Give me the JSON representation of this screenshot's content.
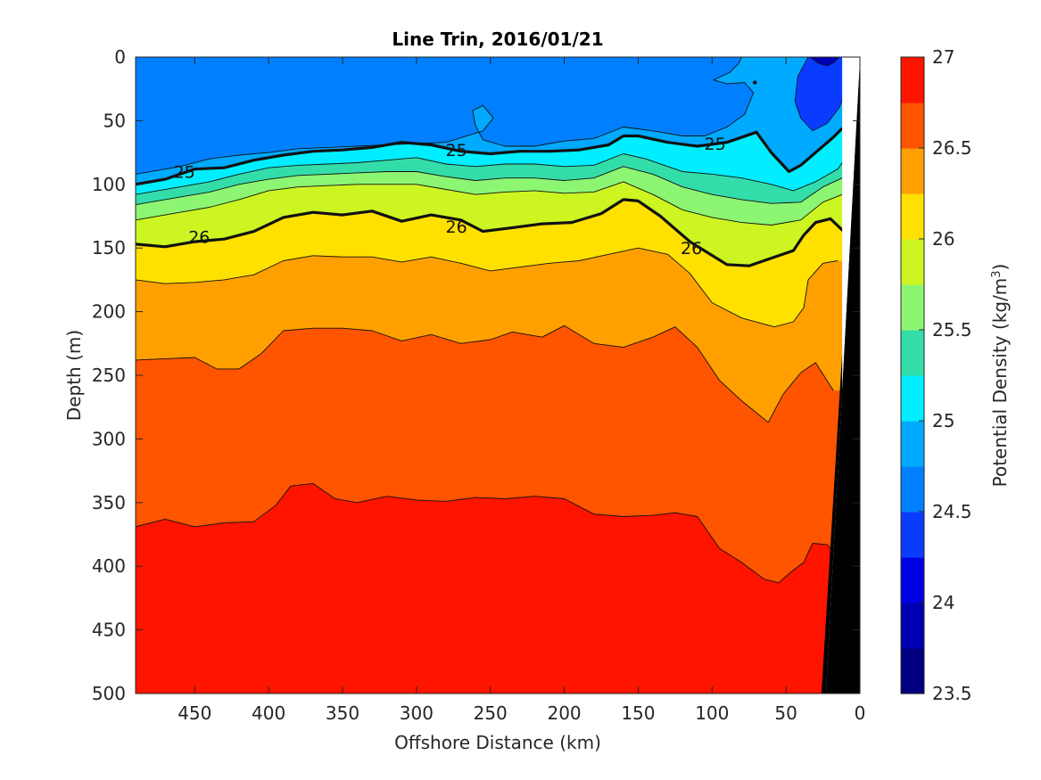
{
  "chart_data": {
    "type": "contour",
    "title": "Line Trin, 2016/01/21",
    "xlabel": "Offshore Distance (km)",
    "ylabel": "Depth (m)",
    "colorbar_label": "Potential Density (kg/m",
    "colorbar_label_superscript": "3",
    "colorbar_label_suffix": ")",
    "xlim": [
      490,
      0
    ],
    "ylim": [
      0,
      500
    ],
    "x_reversed": true,
    "y_reversed": true,
    "xticks": [
      450,
      400,
      350,
      300,
      250,
      200,
      150,
      100,
      50,
      0
    ],
    "yticks": [
      0,
      50,
      100,
      150,
      200,
      250,
      300,
      350,
      400,
      450,
      500
    ],
    "colorbar_range": [
      23.5,
      27
    ],
    "colorbar_ticks": [
      23.5,
      24,
      24.5,
      25,
      25.5,
      26,
      26.5,
      27
    ],
    "contour_interval": 0.25,
    "levels": [
      23.5,
      23.75,
      24,
      24.25,
      24.5,
      24.75,
      25,
      25.25,
      25.5,
      25.75,
      26,
      26.25,
      26.5,
      26.75,
      27
    ],
    "level_colors": [
      "#000080",
      "#0000B3",
      "#0000E6",
      "#0A3CFF",
      "#0080FF",
      "#00AAFF",
      "#00EEFF",
      "#33DDAA",
      "#8CF572",
      "#CCF522",
      "#FFE100",
      "#FFA000",
      "#FF5400",
      "#FF1400",
      "#BB0000"
    ],
    "labeled_contours": [
      {
        "value": 25,
        "labels": [
          {
            "x": 457,
            "y": 90
          },
          {
            "x": 273,
            "y": 73
          },
          {
            "x": 98,
            "y": 68
          }
        ]
      },
      {
        "value": 26,
        "labels": [
          {
            "x": 447,
            "y": 141
          },
          {
            "x": 273,
            "y": 133
          },
          {
            "x": 114,
            "y": 150
          }
        ]
      }
    ],
    "bathymetry_color": "#000000",
    "isopycnals": [
      {
        "value": 24.75,
        "points": [
          [
            490,
            92
          ],
          [
            460,
            86
          ],
          [
            440,
            80
          ],
          [
            420,
            77
          ],
          [
            400,
            75
          ],
          [
            380,
            72
          ],
          [
            360,
            71
          ],
          [
            340,
            70
          ],
          [
            320,
            69
          ],
          [
            300,
            68
          ],
          [
            280,
            67
          ],
          [
            255,
            58
          ],
          [
            248,
            48
          ],
          [
            255,
            38
          ],
          [
            262,
            42
          ],
          [
            260,
            54
          ],
          [
            255,
            65
          ],
          [
            240,
            70
          ],
          [
            220,
            70
          ],
          [
            200,
            66
          ],
          [
            180,
            64
          ],
          [
            160,
            55
          ],
          [
            140,
            58
          ],
          [
            120,
            62
          ],
          [
            105,
            62
          ],
          [
            90,
            55
          ],
          [
            78,
            45
          ],
          [
            72,
            28
          ],
          [
            78,
            20
          ],
          [
            90,
            21
          ],
          [
            99,
            18
          ],
          [
            88,
            12
          ],
          [
            82,
            5
          ],
          [
            80,
            0
          ]
        ]
      },
      {
        "value": 25,
        "points": [
          [
            490,
            100
          ],
          [
            470,
            96
          ],
          [
            450,
            88
          ],
          [
            430,
            87
          ],
          [
            410,
            81
          ],
          [
            390,
            77
          ],
          [
            370,
            74
          ],
          [
            350,
            73
          ],
          [
            330,
            71
          ],
          [
            310,
            67
          ],
          [
            290,
            69
          ],
          [
            270,
            74
          ],
          [
            250,
            76
          ],
          [
            230,
            74
          ],
          [
            210,
            74
          ],
          [
            190,
            73
          ],
          [
            170,
            69
          ],
          [
            160,
            62
          ],
          [
            150,
            62
          ],
          [
            130,
            67
          ],
          [
            110,
            70
          ],
          [
            90,
            67
          ],
          [
            70,
            59
          ],
          [
            60,
            75
          ],
          [
            48,
            90
          ],
          [
            40,
            85
          ],
          [
            30,
            75
          ],
          [
            18,
            63
          ],
          [
            12,
            56
          ]
        ]
      },
      {
        "value": 25.25,
        "points": [
          [
            490,
            108
          ],
          [
            460,
            102
          ],
          [
            440,
            98
          ],
          [
            420,
            92
          ],
          [
            400,
            87
          ],
          [
            380,
            85
          ],
          [
            360,
            84
          ],
          [
            340,
            83
          ],
          [
            320,
            81
          ],
          [
            300,
            79
          ],
          [
            280,
            84
          ],
          [
            260,
            86
          ],
          [
            240,
            84
          ],
          [
            220,
            84
          ],
          [
            200,
            86
          ],
          [
            180,
            85
          ],
          [
            160,
            76
          ],
          [
            145,
            80
          ],
          [
            120,
            90
          ],
          [
            100,
            92
          ],
          [
            80,
            95
          ],
          [
            60,
            100
          ],
          [
            45,
            105
          ],
          [
            30,
            98
          ],
          [
            15,
            88
          ],
          [
            10,
            80
          ]
        ]
      },
      {
        "value": 25.5,
        "points": [
          [
            490,
            116
          ],
          [
            460,
            110
          ],
          [
            440,
            106
          ],
          [
            420,
            100
          ],
          [
            400,
            96
          ],
          [
            380,
            93
          ],
          [
            360,
            92
          ],
          [
            340,
            91
          ],
          [
            320,
            90
          ],
          [
            300,
            90
          ],
          [
            280,
            94
          ],
          [
            260,
            97
          ],
          [
            240,
            95
          ],
          [
            220,
            95
          ],
          [
            200,
            97
          ],
          [
            180,
            95
          ],
          [
            160,
            86
          ],
          [
            140,
            92
          ],
          [
            120,
            102
          ],
          [
            100,
            108
          ],
          [
            80,
            112
          ],
          [
            60,
            115
          ],
          [
            40,
            114
          ],
          [
            25,
            102
          ],
          [
            10,
            94
          ]
        ]
      },
      {
        "value": 25.75,
        "points": [
          [
            490,
            128
          ],
          [
            460,
            122
          ],
          [
            440,
            118
          ],
          [
            420,
            112
          ],
          [
            400,
            105
          ],
          [
            380,
            102
          ],
          [
            360,
            101
          ],
          [
            340,
            100
          ],
          [
            320,
            100
          ],
          [
            300,
            100
          ],
          [
            280,
            104
          ],
          [
            260,
            108
          ],
          [
            240,
            106
          ],
          [
            220,
            105
          ],
          [
            200,
            107
          ],
          [
            180,
            106
          ],
          [
            160,
            98
          ],
          [
            140,
            108
          ],
          [
            120,
            120
          ],
          [
            100,
            126
          ],
          [
            80,
            130
          ],
          [
            60,
            132
          ],
          [
            40,
            128
          ],
          [
            25,
            114
          ],
          [
            12,
            108
          ]
        ]
      },
      {
        "value": 26,
        "points": [
          [
            490,
            147
          ],
          [
            470,
            149
          ],
          [
            450,
            145
          ],
          [
            430,
            143
          ],
          [
            410,
            137
          ],
          [
            390,
            126
          ],
          [
            370,
            122
          ],
          [
            350,
            124
          ],
          [
            330,
            121
          ],
          [
            310,
            129
          ],
          [
            290,
            124
          ],
          [
            270,
            128
          ],
          [
            255,
            137
          ],
          [
            235,
            134
          ],
          [
            215,
            131
          ],
          [
            195,
            130
          ],
          [
            175,
            123
          ],
          [
            160,
            112
          ],
          [
            150,
            113
          ],
          [
            135,
            125
          ],
          [
            115,
            145
          ],
          [
            90,
            163
          ],
          [
            75,
            164
          ],
          [
            60,
            158
          ],
          [
            45,
            152
          ],
          [
            38,
            140
          ],
          [
            30,
            130
          ],
          [
            20,
            127
          ],
          [
            10,
            138
          ]
        ]
      },
      {
        "value": 26.25,
        "points": [
          [
            490,
            175
          ],
          [
            470,
            178
          ],
          [
            450,
            177
          ],
          [
            430,
            175
          ],
          [
            410,
            171
          ],
          [
            390,
            160
          ],
          [
            370,
            156
          ],
          [
            350,
            157
          ],
          [
            330,
            157
          ],
          [
            310,
            161
          ],
          [
            290,
            157
          ],
          [
            270,
            162
          ],
          [
            250,
            168
          ],
          [
            230,
            165
          ],
          [
            210,
            162
          ],
          [
            190,
            160
          ],
          [
            170,
            155
          ],
          [
            150,
            150
          ],
          [
            130,
            155
          ],
          [
            115,
            170
          ],
          [
            100,
            193
          ],
          [
            80,
            205
          ],
          [
            58,
            212
          ],
          [
            45,
            208
          ],
          [
            38,
            197
          ],
          [
            35,
            175
          ],
          [
            25,
            162
          ],
          [
            15,
            160
          ]
        ]
      },
      {
        "value": 26.5,
        "points": [
          [
            490,
            238
          ],
          [
            470,
            237
          ],
          [
            450,
            236
          ],
          [
            435,
            245
          ],
          [
            420,
            245
          ],
          [
            405,
            233
          ],
          [
            390,
            215
          ],
          [
            370,
            213
          ],
          [
            350,
            213
          ],
          [
            330,
            215
          ],
          [
            310,
            223
          ],
          [
            290,
            218
          ],
          [
            270,
            225
          ],
          [
            250,
            222
          ],
          [
            235,
            216
          ],
          [
            215,
            220
          ],
          [
            200,
            211
          ],
          [
            180,
            225
          ],
          [
            160,
            228
          ],
          [
            140,
            220
          ],
          [
            125,
            212
          ],
          [
            110,
            228
          ],
          [
            95,
            254
          ],
          [
            80,
            270
          ],
          [
            62,
            287
          ],
          [
            52,
            265
          ],
          [
            40,
            248
          ],
          [
            30,
            240
          ],
          [
            18,
            262
          ]
        ]
      },
      {
        "value": 26.75,
        "points": [
          [
            490,
            369
          ],
          [
            470,
            363
          ],
          [
            450,
            369
          ],
          [
            430,
            366
          ],
          [
            410,
            365
          ],
          [
            395,
            352
          ],
          [
            385,
            337
          ],
          [
            370,
            335
          ],
          [
            355,
            347
          ],
          [
            340,
            350
          ],
          [
            320,
            345
          ],
          [
            300,
            348
          ],
          [
            280,
            349
          ],
          [
            260,
            346
          ],
          [
            240,
            347
          ],
          [
            220,
            345
          ],
          [
            200,
            347
          ],
          [
            180,
            359
          ],
          [
            160,
            361
          ],
          [
            140,
            360
          ],
          [
            125,
            358
          ],
          [
            110,
            361
          ],
          [
            95,
            386
          ],
          [
            80,
            397
          ],
          [
            65,
            410
          ],
          [
            55,
            413
          ],
          [
            45,
            403
          ],
          [
            38,
            397
          ],
          [
            32,
            382
          ],
          [
            22,
            383
          ],
          [
            15,
            394
          ]
        ]
      }
    ]
  }
}
